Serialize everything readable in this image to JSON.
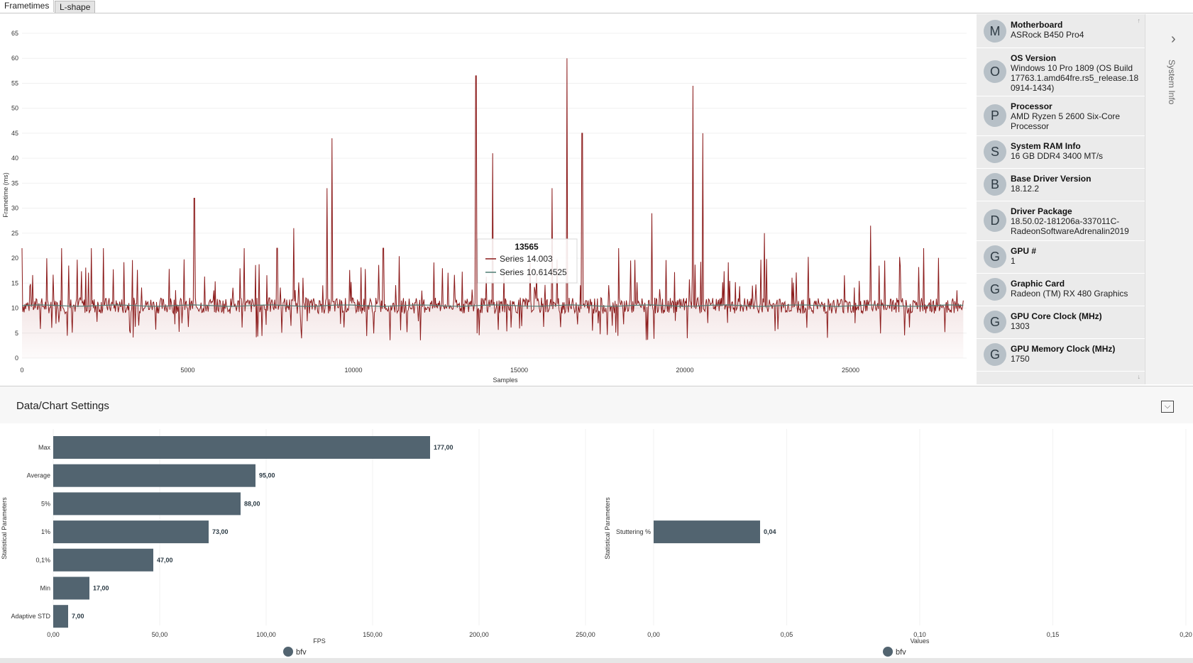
{
  "tabs": [
    {
      "label": "Frametimes"
    },
    {
      "label": "L-shape"
    }
  ],
  "frametimes": {
    "y_axis_label": "Frametime (ms)",
    "x_axis_label": "Samples",
    "y_ticks": [
      "0",
      "5",
      "10",
      "15",
      "20",
      "25",
      "30",
      "35",
      "40",
      "45",
      "50",
      "55",
      "60",
      "65"
    ],
    "x_ticks": [
      "0",
      "5000",
      "10000",
      "15000",
      "20000",
      "25000"
    ],
    "tooltip": {
      "header": "13565",
      "rows": [
        {
          "name": "Series",
          "value": "14.003",
          "color": "#8b1a1a"
        },
        {
          "name": "Series",
          "value": "10.614525",
          "color": "#4f7c73"
        }
      ]
    },
    "colors": {
      "frametime_line": "#8b1a1a",
      "moving_avg_line": "#4f7c73"
    }
  },
  "chart_data": [
    {
      "type": "line",
      "xlabel": "Samples",
      "ylabel": "Frametime (ms)",
      "xlim": [
        0,
        28500
      ],
      "ylim": [
        0,
        65
      ],
      "baseline_ms": 10.5,
      "spikes": [
        {
          "x": 0,
          "y": 22
        },
        {
          "x": 1200,
          "y": 22
        },
        {
          "x": 2100,
          "y": 22
        },
        {
          "x": 2450,
          "y": 22
        },
        {
          "x": 5200,
          "y": 32
        },
        {
          "x": 6700,
          "y": 22
        },
        {
          "x": 7700,
          "y": 22
        },
        {
          "x": 8200,
          "y": 26
        },
        {
          "x": 9200,
          "y": 34
        },
        {
          "x": 9350,
          "y": 44
        },
        {
          "x": 10900,
          "y": 22
        },
        {
          "x": 13700,
          "y": 56.5
        },
        {
          "x": 14200,
          "y": 41
        },
        {
          "x": 16000,
          "y": 34
        },
        {
          "x": 16450,
          "y": 60
        },
        {
          "x": 16900,
          "y": 45
        },
        {
          "x": 18000,
          "y": 22
        },
        {
          "x": 19000,
          "y": 29
        },
        {
          "x": 20250,
          "y": 54.5
        },
        {
          "x": 20550,
          "y": 45
        },
        {
          "x": 22400,
          "y": 25
        },
        {
          "x": 25600,
          "y": 26.5
        },
        {
          "x": 27200,
          "y": 22
        }
      ],
      "series": [
        {
          "name": "Series",
          "value_at_13565": 14.003
        },
        {
          "name": "Series",
          "value_at_13565": 10.614525
        }
      ]
    },
    {
      "type": "bar",
      "orientation": "horizontal",
      "ylabel": "Statistical Parameters",
      "xlabel": "FPS",
      "categories": [
        "Max",
        "Average",
        "5%",
        "1%",
        "0,1%",
        "Min",
        "Adaptive STD"
      ],
      "values": [
        177,
        95,
        88,
        73,
        47,
        17,
        7
      ],
      "value_labels": [
        "177,00",
        "95,00",
        "88,00",
        "73,00",
        "47,00",
        "17,00",
        "7,00"
      ],
      "xlim": [
        0,
        250
      ],
      "x_ticks": [
        "0,00",
        "50,00",
        "100,00",
        "150,00",
        "200,00",
        "250,00"
      ],
      "legend": "bfv",
      "color": "#526470"
    },
    {
      "type": "bar",
      "orientation": "horizontal",
      "ylabel": "Statistical Parameters",
      "xlabel": "Values",
      "categories": [
        "Stuttering %"
      ],
      "values": [
        0.04
      ],
      "value_labels": [
        "0,04"
      ],
      "xlim": [
        0,
        0.2
      ],
      "x_ticks": [
        "0,00",
        "0,05",
        "0,10",
        "0,15",
        "0,20"
      ],
      "legend": "bfv",
      "color": "#526470"
    }
  ],
  "system_info": {
    "title": "System Info",
    "items": [
      {
        "letter": "M",
        "title": "Motherboard",
        "value": "ASRock B450 Pro4"
      },
      {
        "letter": "O",
        "title": "OS Version",
        "value": "Windows 10 Pro 1809 (OS Build 17763.1.amd64fre.rs5_release.18 0914-1434)"
      },
      {
        "letter": "P",
        "title": "Processor",
        "value": "AMD Ryzen 5 2600 Six-Core Processor"
      },
      {
        "letter": "S",
        "title": "System RAM Info",
        "value": "16 GB DDR4 3400 MT/s"
      },
      {
        "letter": "B",
        "title": "Base Driver Version",
        "value": "18.12.2"
      },
      {
        "letter": "D",
        "title": "Driver Package",
        "value": "18.50.02-181206a-337011C-RadeonSoftwareAdrenalin2019"
      },
      {
        "letter": "G",
        "title": "GPU #",
        "value": "1"
      },
      {
        "letter": "G",
        "title": "Graphic Card",
        "value": "Radeon (TM) RX 480 Graphics"
      },
      {
        "letter": "G",
        "title": "GPU Core Clock (MHz)",
        "value": "1303"
      },
      {
        "letter": "G",
        "title": "GPU Memory Clock (MHz)",
        "value": "1750"
      }
    ]
  },
  "settings": {
    "title": "Data/Chart Settings"
  }
}
